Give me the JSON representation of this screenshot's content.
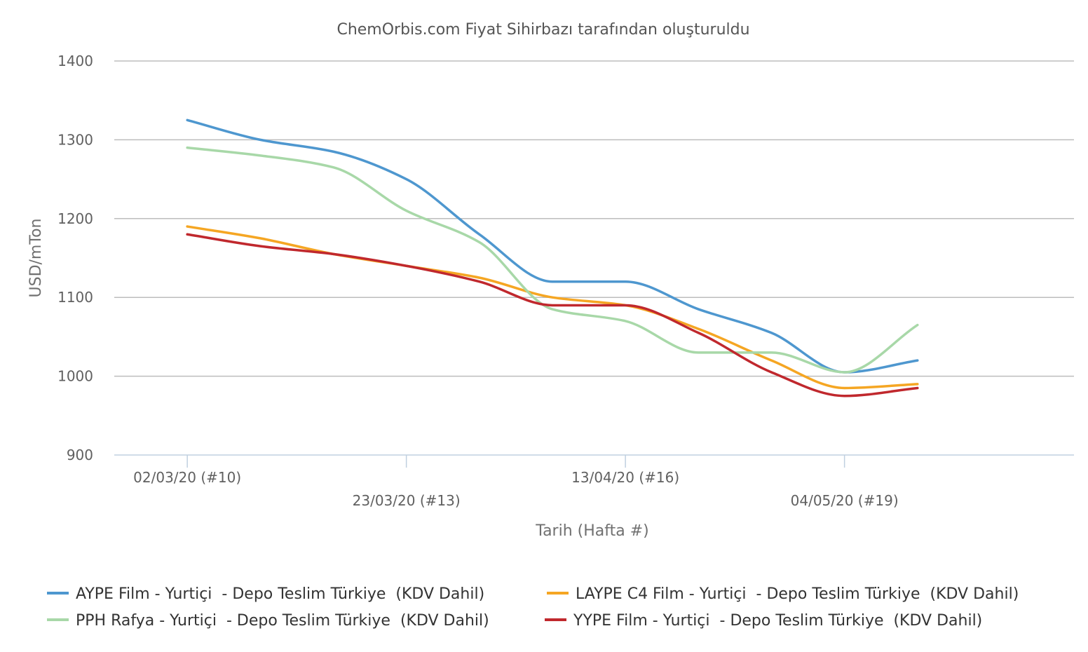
{
  "chart_data": {
    "type": "line",
    "title": "ChemOrbis.com Fiyat Sihirbazı tarafından oluşturuldu",
    "xlabel": "Tarih (Hafta #)",
    "ylabel": "USD/mTon",
    "ylim": [
      900,
      1400
    ],
    "yticks": [
      900,
      1000,
      1100,
      1200,
      1300,
      1400
    ],
    "x_range": [
      "2020-02-24",
      "2020-05-26"
    ],
    "xticks": [
      {
        "date": "2020-03-02",
        "label": "02/03/20 (#10)"
      },
      {
        "date": "2020-03-23",
        "label": "23/03/20 (#13)"
      },
      {
        "date": "2020-04-13",
        "label": "13/04/20 (#16)"
      },
      {
        "date": "2020-05-04",
        "label": "04/05/20 (#19)"
      }
    ],
    "x": [
      "2020-03-02",
      "2020-03-09",
      "2020-03-16",
      "2020-03-23",
      "2020-03-30",
      "2020-04-06",
      "2020-04-13",
      "2020-04-20",
      "2020-04-27",
      "2020-05-04",
      "2020-05-11"
    ],
    "series": [
      {
        "name": "AYPE Film - Yurtiçi  - Depo Teslim Türkiye  (KDV Dahil)",
        "color": "#4e97cf",
        "values": [
          1325,
          1300,
          1285,
          1250,
          1180,
          1120,
          1120,
          1085,
          1055,
          1005,
          1020
        ]
      },
      {
        "name": "LAYPE C4 Film - Yurtiçi  - Depo Teslim Türkiye  (KDV Dahil)",
        "color": "#f5a623",
        "values": [
          1190,
          1175,
          1155,
          1140,
          1125,
          1100,
          1090,
          1060,
          1020,
          985,
          990
        ]
      },
      {
        "name": "PPH Rafya - Yurtiçi  - Depo Teslim Türkiye  (KDV Dahil)",
        "color": "#a8d8a8",
        "values": [
          1290,
          1280,
          1265,
          1210,
          1170,
          1085,
          1070,
          1030,
          1030,
          1005,
          1065
        ]
      },
      {
        "name": "YYPE Film - Yurtiçi  - Depo Teslim Türkiye  (KDV Dahil)",
        "color": "#c0282d",
        "values": [
          1180,
          1165,
          1155,
          1140,
          1120,
          1090,
          1090,
          1055,
          1005,
          975,
          985
        ]
      }
    ],
    "grid": true,
    "legend": "bottom"
  }
}
